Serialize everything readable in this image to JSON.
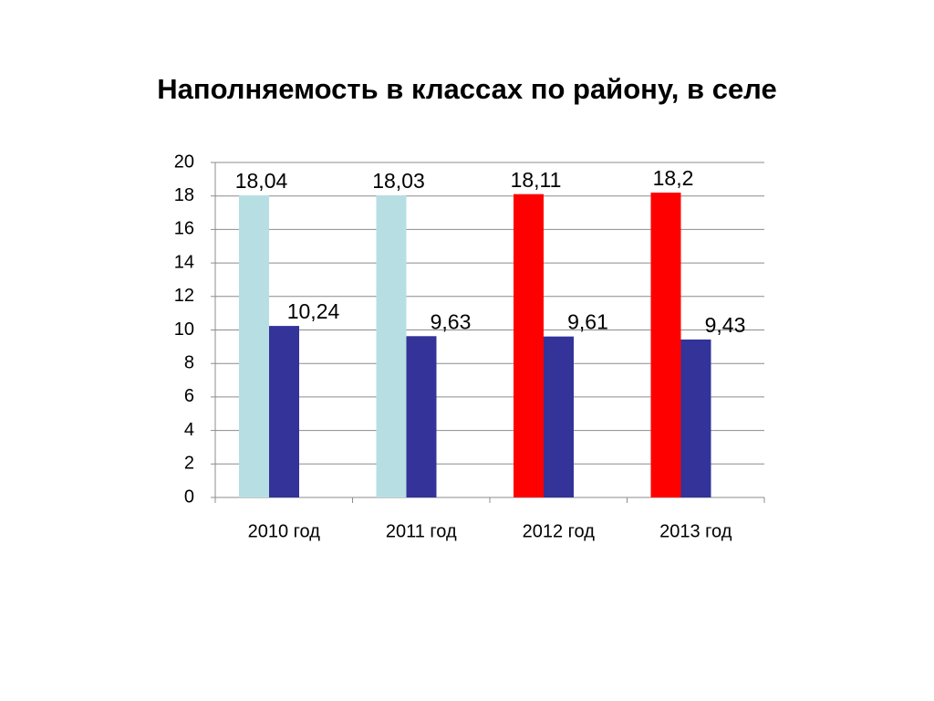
{
  "chart_data": {
    "type": "bar",
    "title": "Наполняемость в классах по району, в селе",
    "categories": [
      "2010 год",
      "2011 год",
      "2012 год",
      "2013 год"
    ],
    "series": [
      {
        "colors": [
          "#b7dfe3",
          "#b7dfe3",
          "#ff0000",
          "#ff0000"
        ],
        "values": [
          18.04,
          18.03,
          18.11,
          18.2
        ],
        "value_labels": [
          "18,04",
          "18,03",
          "18,11",
          "18,2"
        ]
      },
      {
        "color": "#333399",
        "values": [
          10.24,
          9.63,
          9.61,
          9.43
        ],
        "value_labels": [
          "10,24",
          "9,63",
          "9,61",
          "9,43"
        ]
      }
    ],
    "ylim": [
      0,
      20
    ],
    "yticks": [
      0,
      2,
      4,
      6,
      8,
      10,
      12,
      14,
      16,
      18,
      20
    ],
    "grid": true
  }
}
